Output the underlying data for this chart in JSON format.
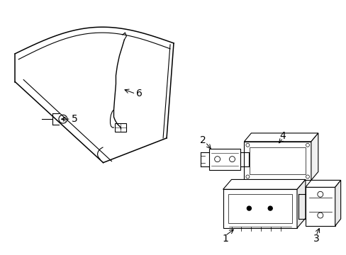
{
  "bg_color": "#ffffff",
  "line_color": "#000000",
  "fig_width": 4.89,
  "fig_height": 3.6,
  "dpi": 100,
  "font_size": 10,
  "lw": 0.8
}
